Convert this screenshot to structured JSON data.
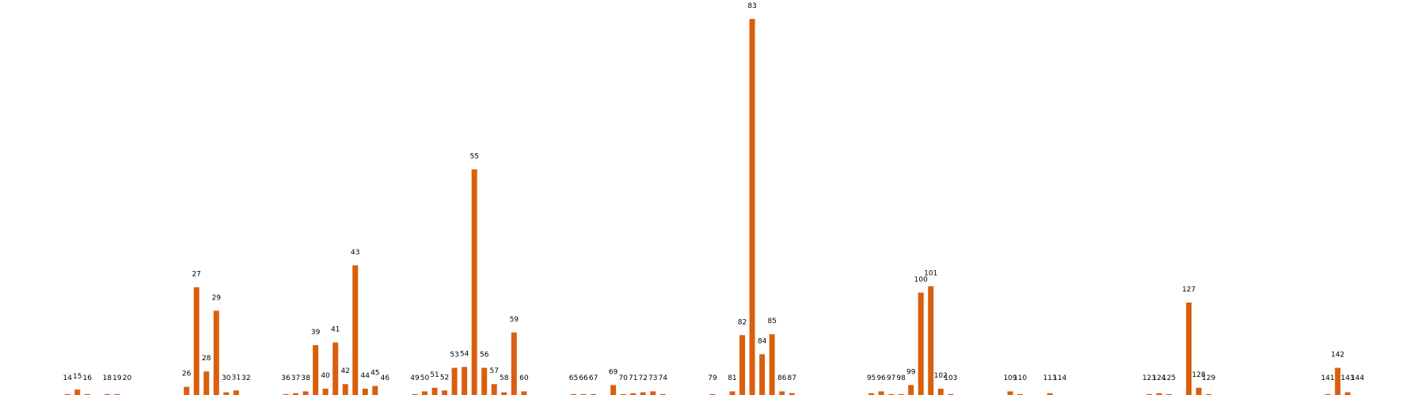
{
  "chart_data": {
    "type": "bar",
    "x": [
      14,
      15,
      16,
      18,
      19,
      20,
      26,
      27,
      28,
      29,
      30,
      31,
      32,
      36,
      37,
      38,
      39,
      40,
      41,
      42,
      43,
      44,
      45,
      46,
      49,
      50,
      51,
      52,
      53,
      54,
      55,
      56,
      57,
      58,
      59,
      60,
      65,
      66,
      67,
      69,
      70,
      71,
      72,
      73,
      74,
      79,
      81,
      82,
      83,
      84,
      85,
      86,
      87,
      95,
      96,
      97,
      98,
      99,
      100,
      101,
      102,
      103,
      109,
      110,
      113,
      114,
      123,
      124,
      125,
      127,
      128,
      129,
      141,
      142,
      143,
      144
    ],
    "values": [
      1,
      6,
      1,
      1,
      1,
      0,
      9,
      119,
      26,
      93,
      3,
      5,
      0,
      1,
      2,
      4,
      55,
      7,
      58,
      12,
      143,
      7,
      10,
      0,
      1,
      4,
      8,
      5,
      30,
      31,
      249,
      30,
      12,
      3,
      69,
      4,
      1,
      1,
      1,
      11,
      1,
      2,
      3,
      4,
      1,
      1,
      4,
      66,
      415,
      45,
      67,
      4,
      2,
      2,
      4,
      1,
      1,
      11,
      113,
      120,
      7,
      1,
      4,
      1,
      2,
      0,
      1,
      2,
      1,
      102,
      8,
      1,
      1,
      30,
      3,
      0
    ],
    "color": "#d95f0e",
    "xlim": [
      7.2,
      150.8
    ],
    "ylim": [
      0,
      415
    ]
  }
}
